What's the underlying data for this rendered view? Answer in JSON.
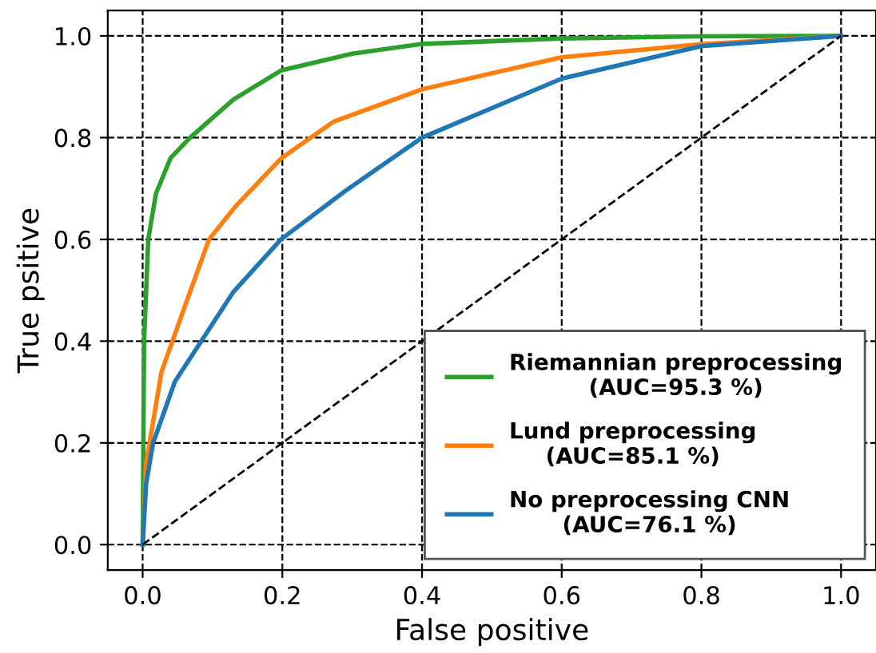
{
  "chart_data": {
    "type": "line",
    "xlabel": "False positive",
    "ylabel": "True psitive",
    "xlim": [
      -0.05,
      1.05
    ],
    "ylim": [
      -0.05,
      1.05
    ],
    "xticks": [
      {
        "value": 0,
        "label": "0.0"
      },
      0.2,
      0.4,
      0.6,
      0.8,
      {
        "value": 1,
        "label": "1.0"
      }
    ],
    "yticks": [
      {
        "value": 0,
        "label": "0.0"
      },
      0.2,
      0.4,
      0.6,
      0.8,
      {
        "value": 1,
        "label": "1.0"
      }
    ],
    "grid": true,
    "legend": "bottom right",
    "line_style": "solid",
    "marker": "none",
    "series": [
      {
        "name": "Riemannian preprocessing\n(AUC=95.3 %)",
        "color": "#2ca02c",
        "x": [
          0,
          0.002,
          0.008,
          0.019,
          0.04,
          0.068,
          0.13,
          0.198,
          0.3,
          0.398,
          0.6,
          0.8,
          1.0
        ],
        "values": [
          0,
          0.4,
          0.6,
          0.69,
          0.76,
          0.8,
          0.875,
          0.932,
          0.965,
          0.984,
          0.995,
          0.999,
          1.0
        ]
      },
      {
        "name": "Lund preprocessing\n(AUC=85.1 %)",
        "color": "#ff7f0e",
        "x": [
          0,
          0.005,
          0.027,
          0.065,
          0.095,
          0.133,
          0.198,
          0.274,
          0.4,
          0.6,
          0.8,
          1.0
        ],
        "values": [
          0,
          0.16,
          0.34,
          0.486,
          0.6,
          0.665,
          0.759,
          0.832,
          0.895,
          0.958,
          0.984,
          1.0
        ]
      },
      {
        "name": "No preprocessing CNN\n(AUC=76.1 %)",
        "color": "#1f77b4",
        "x": [
          0,
          0.005,
          0.015,
          0.046,
          0.084,
          0.13,
          0.198,
          0.29,
          0.4,
          0.6,
          0.8,
          1.0
        ],
        "values": [
          0,
          0.12,
          0.2,
          0.32,
          0.4,
          0.497,
          0.6,
          0.695,
          0.8,
          0.916,
          0.98,
          1.0
        ]
      },
      {
        "color": "#000000",
        "line_style": "dashed",
        "x": [
          0,
          1
        ],
        "values": [
          0,
          1
        ]
      }
    ]
  }
}
